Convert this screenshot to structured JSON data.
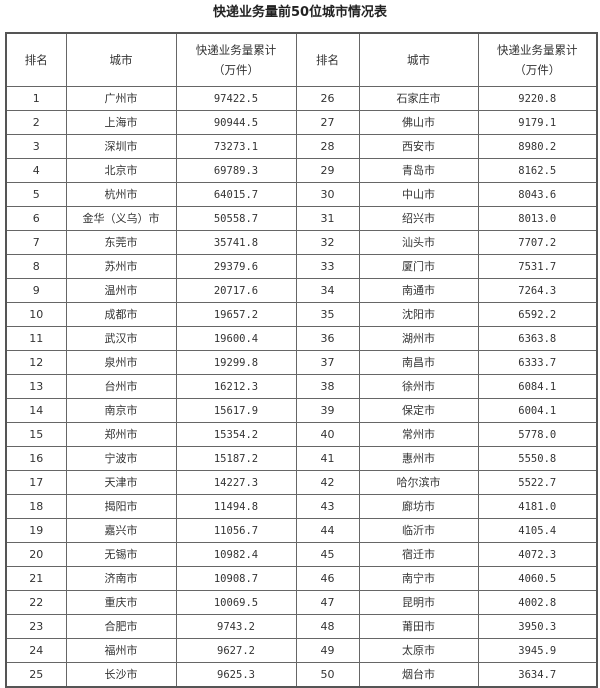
{
  "title": "快递业务量前50位城市情况表",
  "headers": {
    "rank": "排名",
    "city": "城市",
    "volume_line1": "快递业务量累计",
    "volume_line2": "（万件）"
  },
  "rows": [
    {
      "rank": "1",
      "city": "广州市",
      "value": "97422.5"
    },
    {
      "rank": "2",
      "city": "上海市",
      "value": "90944.5"
    },
    {
      "rank": "3",
      "city": "深圳市",
      "value": "73273.1"
    },
    {
      "rank": "4",
      "city": "北京市",
      "value": "69789.3"
    },
    {
      "rank": "5",
      "city": "杭州市",
      "value": "64015.7"
    },
    {
      "rank": "6",
      "city": "金华（义乌）市",
      "value": "50558.7"
    },
    {
      "rank": "7",
      "city": "东莞市",
      "value": "35741.8"
    },
    {
      "rank": "8",
      "city": "苏州市",
      "value": "29379.6"
    },
    {
      "rank": "9",
      "city": "温州市",
      "value": "20717.6"
    },
    {
      "rank": "10",
      "city": "成都市",
      "value": "19657.2"
    },
    {
      "rank": "11",
      "city": "武汉市",
      "value": "19600.4"
    },
    {
      "rank": "12",
      "city": "泉州市",
      "value": "19299.8"
    },
    {
      "rank": "13",
      "city": "台州市",
      "value": "16212.3"
    },
    {
      "rank": "14",
      "city": "南京市",
      "value": "15617.9"
    },
    {
      "rank": "15",
      "city": "郑州市",
      "value": "15354.2"
    },
    {
      "rank": "16",
      "city": "宁波市",
      "value": "15187.2"
    },
    {
      "rank": "17",
      "city": "天津市",
      "value": "14227.3"
    },
    {
      "rank": "18",
      "city": "揭阳市",
      "value": "11494.8"
    },
    {
      "rank": "19",
      "city": "嘉兴市",
      "value": "11056.7"
    },
    {
      "rank": "20",
      "city": "无锡市",
      "value": "10982.4"
    },
    {
      "rank": "21",
      "city": "济南市",
      "value": "10908.7"
    },
    {
      "rank": "22",
      "city": "重庆市",
      "value": "10069.5"
    },
    {
      "rank": "23",
      "city": "合肥市",
      "value": "9743.2"
    },
    {
      "rank": "24",
      "city": "福州市",
      "value": "9627.2"
    },
    {
      "rank": "25",
      "city": "长沙市",
      "value": "9625.3"
    },
    {
      "rank": "26",
      "city": "石家庄市",
      "value": "9220.8"
    },
    {
      "rank": "27",
      "city": "佛山市",
      "value": "9179.1"
    },
    {
      "rank": "28",
      "city": "西安市",
      "value": "8980.2"
    },
    {
      "rank": "29",
      "city": "青岛市",
      "value": "8162.5"
    },
    {
      "rank": "30",
      "city": "中山市",
      "value": "8043.6"
    },
    {
      "rank": "31",
      "city": "绍兴市",
      "value": "8013.0"
    },
    {
      "rank": "32",
      "city": "汕头市",
      "value": "7707.2"
    },
    {
      "rank": "33",
      "city": "厦门市",
      "value": "7531.7"
    },
    {
      "rank": "34",
      "city": "南通市",
      "value": "7264.3"
    },
    {
      "rank": "35",
      "city": "沈阳市",
      "value": "6592.2"
    },
    {
      "rank": "36",
      "city": "湖州市",
      "value": "6363.8"
    },
    {
      "rank": "37",
      "city": "南昌市",
      "value": "6333.7"
    },
    {
      "rank": "38",
      "city": "徐州市",
      "value": "6084.1"
    },
    {
      "rank": "39",
      "city": "保定市",
      "value": "6004.1"
    },
    {
      "rank": "40",
      "city": "常州市",
      "value": "5778.0"
    },
    {
      "rank": "41",
      "city": "惠州市",
      "value": "5550.8"
    },
    {
      "rank": "42",
      "city": "哈尔滨市",
      "value": "5522.7"
    },
    {
      "rank": "43",
      "city": "廊坊市",
      "value": "4181.0"
    },
    {
      "rank": "44",
      "city": "临沂市",
      "value": "4105.4"
    },
    {
      "rank": "45",
      "city": "宿迁市",
      "value": "4072.3"
    },
    {
      "rank": "46",
      "city": "南宁市",
      "value": "4060.5"
    },
    {
      "rank": "47",
      "city": "昆明市",
      "value": "4002.8"
    },
    {
      "rank": "48",
      "city": "莆田市",
      "value": "3950.3"
    },
    {
      "rank": "49",
      "city": "太原市",
      "value": "3945.9"
    },
    {
      "rank": "50",
      "city": "烟台市",
      "value": "3634.7"
    }
  ]
}
